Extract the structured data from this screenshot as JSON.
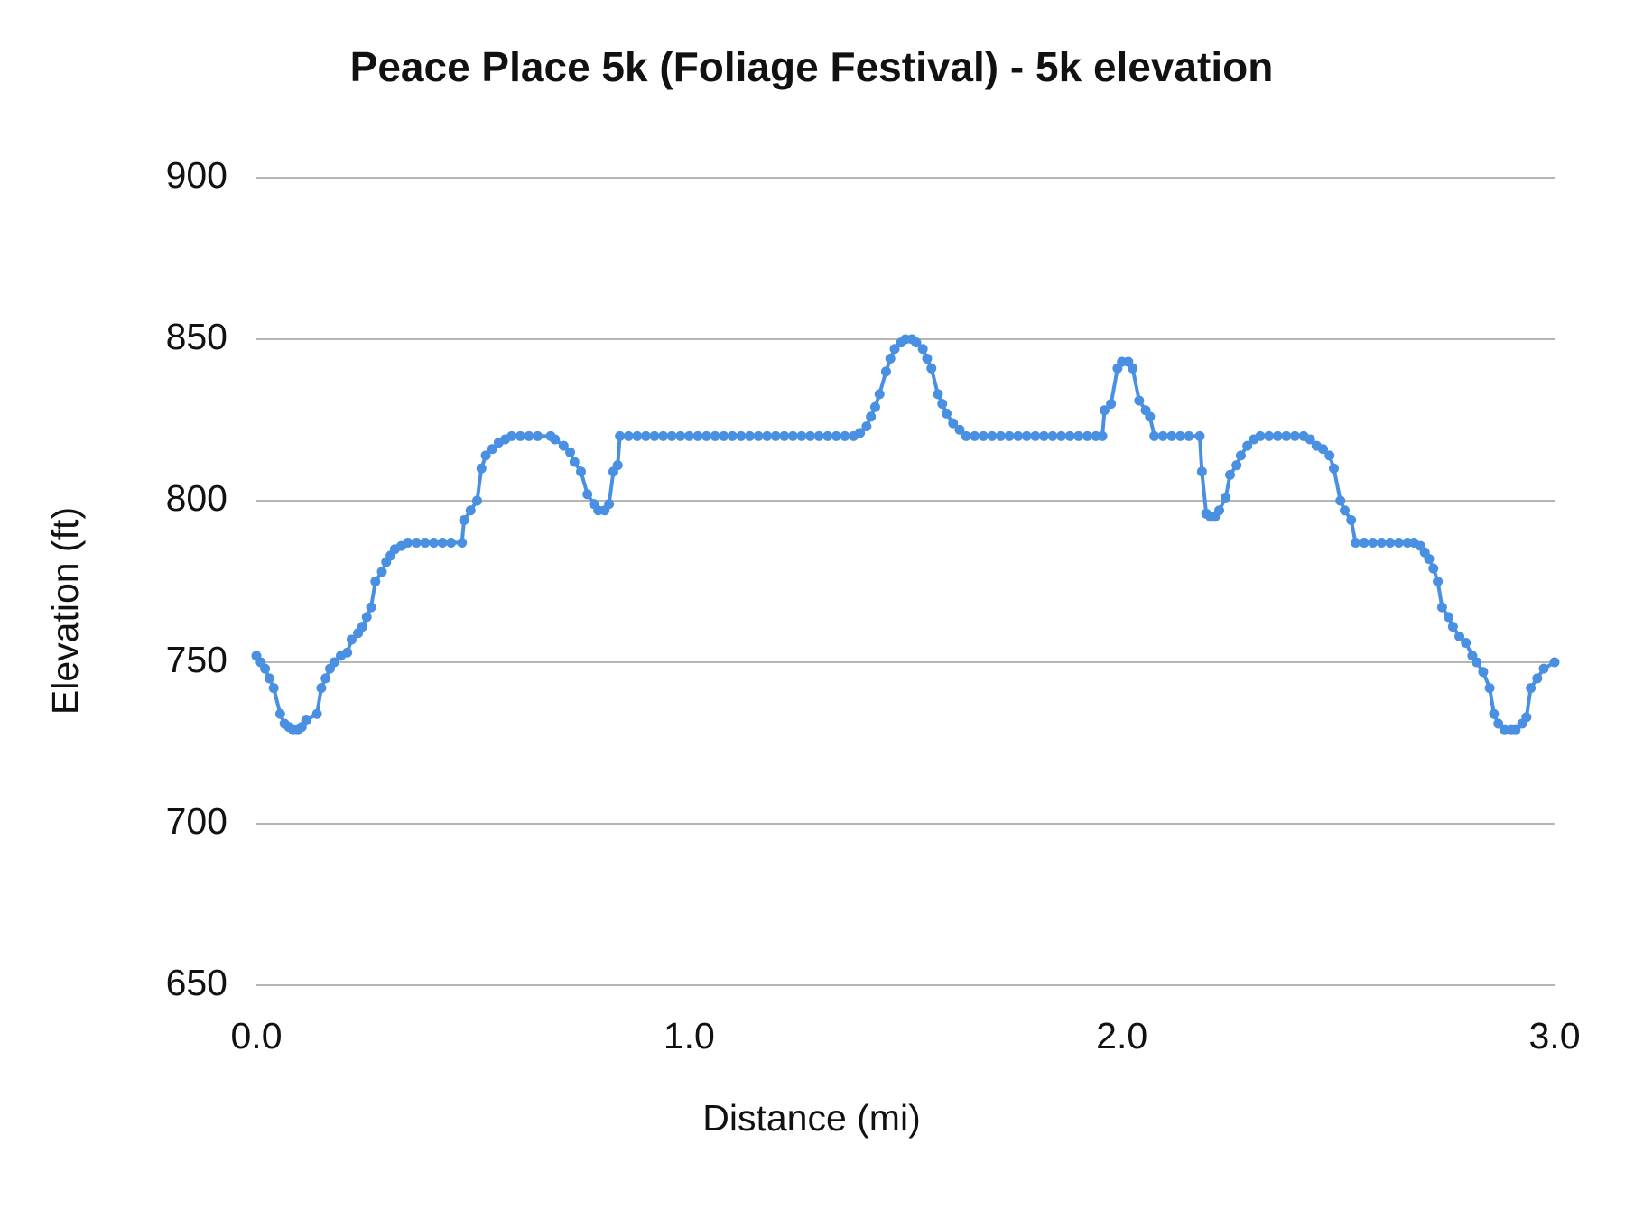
{
  "chart_data": {
    "type": "line",
    "title": "Peace Place 5k (Foliage Festival) - 5k elevation",
    "x_label": "Distance (mi)",
    "y_label": "Elevation (ft)",
    "x": [
      0,
      0.01,
      0.02,
      0.03,
      0.04,
      0.055,
      0.065,
      0.075,
      0.085,
      0.095,
      0.105,
      0.115,
      0.14,
      0.15,
      0.16,
      0.17,
      0.18,
      0.195,
      0.21,
      0.22,
      0.235,
      0.245,
      0.255,
      0.265,
      0.275,
      0.29,
      0.3,
      0.31,
      0.32,
      0.335,
      0.35,
      0.37,
      0.39,
      0.41,
      0.43,
      0.45,
      0.475,
      0.48,
      0.495,
      0.51,
      0.52,
      0.53,
      0.545,
      0.56,
      0.575,
      0.59,
      0.61,
      0.63,
      0.65,
      0.68,
      0.69,
      0.71,
      0.725,
      0.735,
      0.75,
      0.765,
      0.78,
      0.79,
      0.805,
      0.815,
      0.825,
      0.835,
      0.84,
      0.86,
      0.88,
      0.9,
      0.92,
      0.94,
      0.96,
      0.98,
      1.0,
      1.02,
      1.04,
      1.06,
      1.08,
      1.1,
      1.12,
      1.14,
      1.16,
      1.18,
      1.2,
      1.22,
      1.24,
      1.26,
      1.28,
      1.3,
      1.32,
      1.34,
      1.36,
      1.38,
      1.395,
      1.41,
      1.42,
      1.43,
      1.44,
      1.455,
      1.465,
      1.475,
      1.49,
      1.5,
      1.515,
      1.525,
      1.54,
      1.55,
      1.56,
      1.575,
      1.585,
      1.595,
      1.61,
      1.625,
      1.64,
      1.66,
      1.68,
      1.7,
      1.72,
      1.74,
      1.76,
      1.78,
      1.8,
      1.82,
      1.84,
      1.86,
      1.88,
      1.9,
      1.92,
      1.94,
      1.955,
      1.96,
      1.975,
      1.99,
      2.0,
      2.015,
      2.025,
      2.04,
      2.055,
      2.065,
      2.075,
      2.095,
      2.115,
      2.135,
      2.155,
      2.18,
      2.185,
      2.195,
      2.205,
      2.215,
      2.225,
      2.24,
      2.25,
      2.265,
      2.275,
      2.29,
      2.305,
      2.32,
      2.34,
      2.36,
      2.38,
      2.4,
      2.42,
      2.435,
      2.45,
      2.465,
      2.48,
      2.49,
      2.505,
      2.515,
      2.53,
      2.54,
      2.56,
      2.58,
      2.6,
      2.62,
      2.64,
      2.66,
      2.675,
      2.69,
      2.7,
      2.71,
      2.72,
      2.73,
      2.74,
      2.755,
      2.765,
      2.78,
      2.795,
      2.81,
      2.82,
      2.835,
      2.85,
      2.86,
      2.87,
      2.885,
      2.9,
      2.91,
      2.925,
      2.935,
      2.945,
      2.96,
      2.975,
      3.0
    ],
    "series": [
      {
        "color": "#4a90e2",
        "values": [
          752,
          750,
          748,
          745,
          742,
          734,
          731,
          730,
          729,
          729,
          730,
          732,
          734,
          742,
          745,
          748,
          750,
          752,
          753,
          757,
          759,
          761,
          764,
          767,
          775,
          778,
          781,
          783,
          785,
          786,
          787,
          787,
          787,
          787,
          787,
          787,
          787,
          794,
          797,
          800,
          810,
          814,
          816,
          818,
          819,
          820,
          820,
          820,
          820,
          820,
          819,
          817,
          815,
          812,
          809,
          802,
          799,
          797,
          797,
          799,
          809,
          811,
          820,
          820,
          820,
          820,
          820,
          820,
          820,
          820,
          820,
          820,
          820,
          820,
          820,
          820,
          820,
          820,
          820,
          820,
          820,
          820,
          820,
          820,
          820,
          820,
          820,
          820,
          820,
          820,
          821,
          823,
          826,
          829,
          833,
          840,
          844,
          847,
          849,
          850,
          850,
          849,
          847,
          844,
          841,
          833,
          830,
          827,
          824,
          822,
          820,
          820,
          820,
          820,
          820,
          820,
          820,
          820,
          820,
          820,
          820,
          820,
          820,
          820,
          820,
          820,
          820,
          828,
          830,
          841,
          843,
          843,
          841,
          831,
          828,
          826,
          820,
          820,
          820,
          820,
          820,
          820,
          809,
          796,
          795,
          795,
          797,
          801,
          808,
          811,
          814,
          817,
          819,
          820,
          820,
          820,
          820,
          820,
          820,
          819,
          817,
          816,
          814,
          810,
          800,
          797,
          794,
          787,
          787,
          787,
          787,
          787,
          787,
          787,
          787,
          786,
          784,
          782,
          779,
          775,
          767,
          764,
          761,
          758,
          756,
          752,
          750,
          747,
          742,
          734,
          731,
          729,
          729,
          729,
          731,
          733,
          742,
          745,
          748,
          750
        ]
      }
    ],
    "xlim": [
      0,
      3
    ],
    "xticks": [
      {
        "value": 0,
        "label": "0.0"
      },
      {
        "value": 1,
        "label": "1.0"
      },
      {
        "value": 2,
        "label": "2.0"
      },
      {
        "value": 3,
        "label": "3.0"
      }
    ],
    "ylim": [
      650,
      900
    ],
    "yticks": [
      650,
      700,
      750,
      800,
      850,
      900
    ],
    "grid": true,
    "markers": true
  }
}
